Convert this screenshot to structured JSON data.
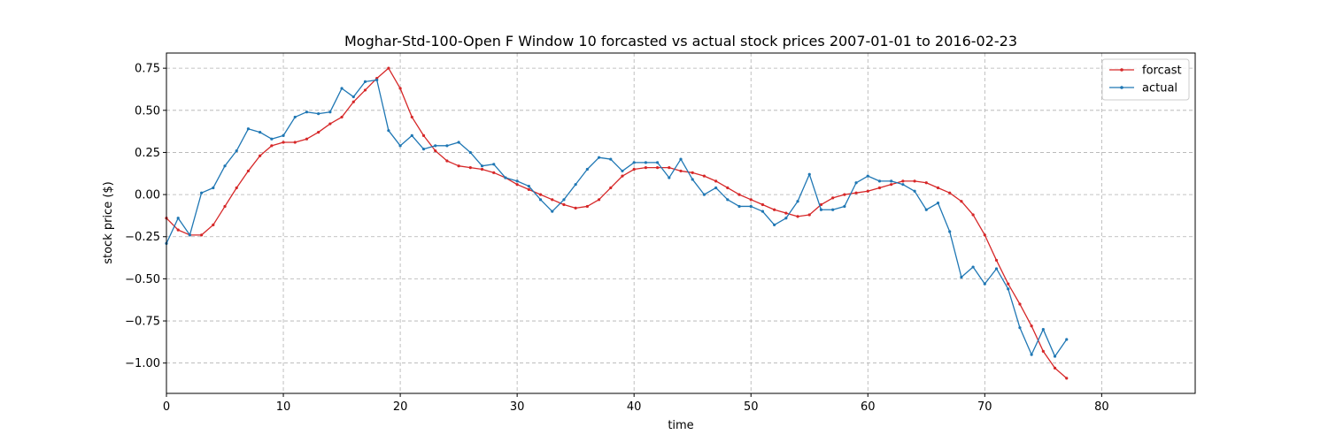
{
  "chart_data": {
    "type": "line",
    "title": "Moghar-Std-100-Open F Window 10 forcasted vs actual stock prices 2007-01-01 to 2016-02-23",
    "xlabel": "time",
    "ylabel": "stock price ($)",
    "xlim": [
      0,
      88
    ],
    "ylim": [
      -1.18,
      0.84
    ],
    "xticks": [
      0,
      10,
      20,
      30,
      40,
      50,
      60,
      70,
      80
    ],
    "yticks": [
      -1.0,
      -0.75,
      -0.5,
      -0.25,
      0.0,
      0.25,
      0.5,
      0.75
    ],
    "ytick_labels": [
      "−1.00",
      "−0.75",
      "−0.50",
      "−0.25",
      "0.00",
      "0.25",
      "0.50",
      "0.75"
    ],
    "grid": true,
    "legend_position": "top-right",
    "series": [
      {
        "name": "forcast",
        "color": "#d62728",
        "x": [
          0,
          1,
          2,
          3,
          4,
          5,
          6,
          7,
          8,
          9,
          10,
          11,
          12,
          13,
          14,
          15,
          16,
          17,
          18,
          19,
          20,
          21,
          22,
          23,
          24,
          25,
          26,
          27,
          28,
          29,
          30,
          31,
          32,
          33,
          34,
          35,
          36,
          37,
          38,
          39,
          40,
          41,
          42,
          43,
          44,
          45,
          46,
          47,
          48,
          49,
          50,
          51,
          52,
          53,
          54,
          55,
          56,
          57,
          58,
          59,
          60,
          61,
          62,
          63,
          64,
          65,
          66,
          67,
          68,
          69,
          70,
          71,
          72,
          73,
          74,
          75,
          76,
          77
        ],
        "values": [
          -0.14,
          -0.21,
          -0.24,
          -0.24,
          -0.18,
          -0.07,
          0.04,
          0.14,
          0.23,
          0.29,
          0.31,
          0.31,
          0.33,
          0.37,
          0.42,
          0.46,
          0.55,
          0.62,
          0.69,
          0.75,
          0.63,
          0.46,
          0.35,
          0.26,
          0.2,
          0.17,
          0.16,
          0.15,
          0.13,
          0.1,
          0.06,
          0.03,
          0.0,
          -0.03,
          -0.06,
          -0.08,
          -0.07,
          -0.03,
          0.04,
          0.11,
          0.15,
          0.16,
          0.16,
          0.16,
          0.14,
          0.13,
          0.11,
          0.08,
          0.04,
          0.0,
          -0.03,
          -0.06,
          -0.09,
          -0.11,
          -0.13,
          -0.12,
          -0.06,
          -0.02,
          0.0,
          0.01,
          0.02,
          0.04,
          0.06,
          0.08,
          0.08,
          0.07,
          0.04,
          0.01,
          -0.04,
          -0.12,
          -0.24,
          -0.39,
          -0.53,
          -0.65,
          -0.78,
          -0.93,
          -1.03,
          -1.09
        ]
      },
      {
        "name": "actual",
        "color": "#1f77b4",
        "x": [
          0,
          1,
          2,
          3,
          4,
          5,
          6,
          7,
          8,
          9,
          10,
          11,
          12,
          13,
          14,
          15,
          16,
          17,
          18,
          19,
          20,
          21,
          22,
          23,
          24,
          25,
          26,
          27,
          28,
          29,
          30,
          31,
          32,
          33,
          34,
          35,
          36,
          37,
          38,
          39,
          40,
          41,
          42,
          43,
          44,
          45,
          46,
          47,
          48,
          49,
          50,
          51,
          52,
          53,
          54,
          55,
          56,
          57,
          58,
          59,
          60,
          61,
          62,
          63,
          64,
          65,
          66,
          67,
          68,
          69,
          70,
          71,
          72,
          73,
          74,
          75,
          76,
          77
        ],
        "values": [
          -0.29,
          -0.14,
          -0.24,
          0.01,
          0.04,
          0.17,
          0.26,
          0.39,
          0.37,
          0.33,
          0.35,
          0.46,
          0.49,
          0.48,
          0.49,
          0.63,
          0.58,
          0.67,
          0.68,
          0.38,
          0.29,
          0.35,
          0.27,
          0.29,
          0.29,
          0.31,
          0.25,
          0.17,
          0.18,
          0.1,
          0.08,
          0.05,
          -0.03,
          -0.1,
          -0.03,
          0.06,
          0.15,
          0.22,
          0.21,
          0.14,
          0.19,
          0.19,
          0.19,
          0.1,
          0.21,
          0.09,
          0.0,
          0.04,
          -0.03,
          -0.07,
          -0.07,
          -0.1,
          -0.18,
          -0.14,
          -0.04,
          0.12,
          -0.09,
          -0.09,
          -0.07,
          0.07,
          0.11,
          0.08,
          0.08,
          0.06,
          0.02,
          -0.09,
          -0.05,
          -0.22,
          -0.49,
          -0.43,
          -0.53,
          -0.44,
          -0.56,
          -0.79,
          -0.95,
          -0.8,
          -0.96,
          -0.86
        ]
      }
    ]
  }
}
